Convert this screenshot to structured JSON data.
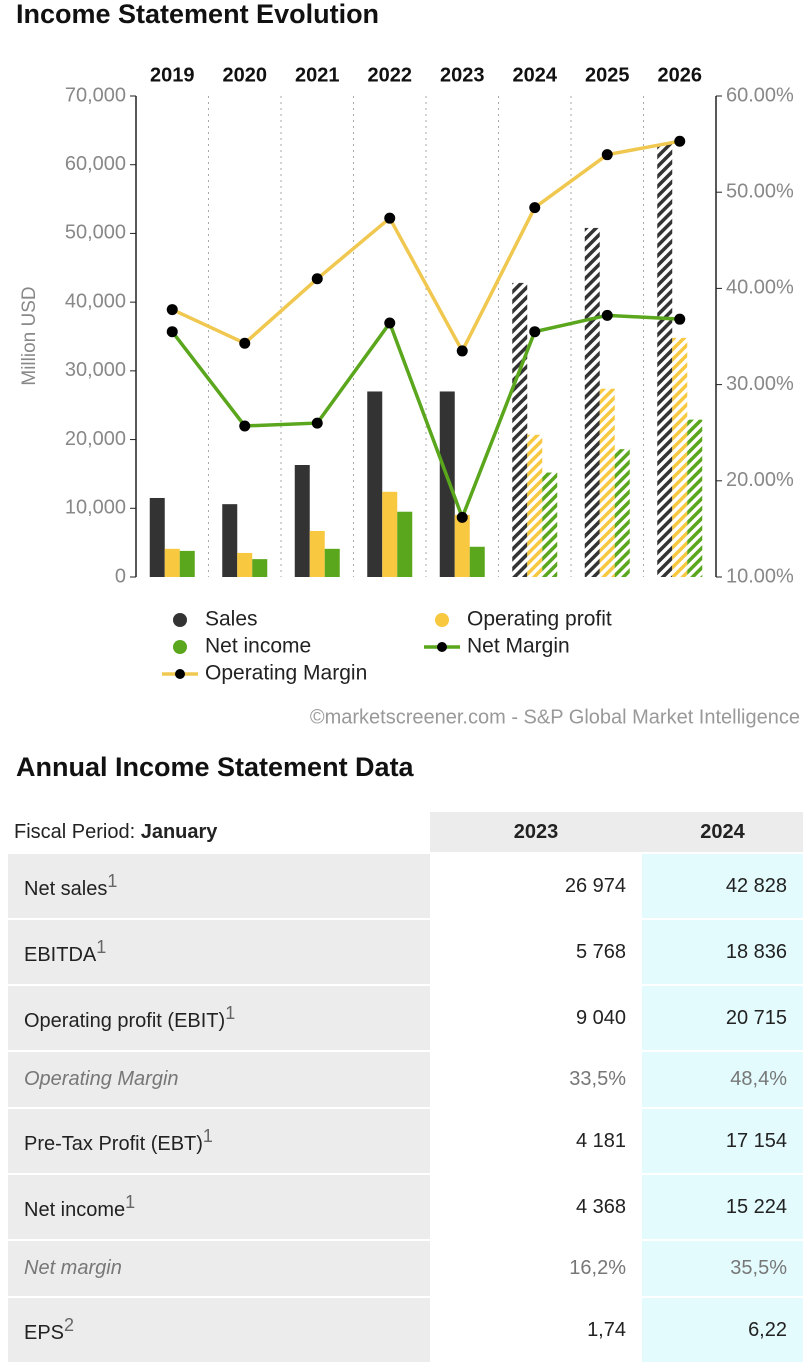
{
  "chart_data": {
    "type": "bar",
    "title": "Income Statement Evolution",
    "y_label": "Million USD",
    "categories": [
      "2019",
      "2020",
      "2021",
      "2022",
      "2023",
      "2024",
      "2025",
      "2026"
    ],
    "hatched": [
      false,
      false,
      false,
      false,
      false,
      true,
      true,
      true
    ],
    "series": [
      {
        "name": "Sales",
        "color": "#333333",
        "type": "bar",
        "values": [
          11500,
          10600,
          16300,
          27000,
          27000,
          42800,
          50800,
          63000
        ]
      },
      {
        "name": "Operating profit",
        "color": "#f7c840",
        "type": "bar",
        "values": [
          4100,
          3500,
          6700,
          12400,
          9040,
          20700,
          27400,
          34800
        ]
      },
      {
        "name": "Net income",
        "color": "#5aa61c",
        "type": "bar",
        "values": [
          3800,
          2600,
          4100,
          9500,
          4400,
          15200,
          18600,
          22900
        ]
      },
      {
        "name": "Net Margin",
        "color": "#5aa61c",
        "type": "line",
        "axis": "y2",
        "values": [
          35.5,
          25.7,
          26.0,
          36.4,
          16.2,
          35.5,
          37.2,
          36.8
        ]
      },
      {
        "name": "Operating Margin",
        "color": "#f0c850",
        "type": "line",
        "axis": "y2",
        "values": [
          37.8,
          34.3,
          41.0,
          47.3,
          33.5,
          48.4,
          53.9,
          55.3
        ]
      }
    ],
    "ylim": [
      0,
      70000
    ],
    "yticks": [
      0,
      {
        "value": 10000,
        "label": "10,000"
      },
      {
        "value": 20000,
        "label": "20,000"
      },
      {
        "value": 30000,
        "label": "30,000"
      },
      {
        "value": 40000,
        "label": "40,000"
      },
      {
        "value": 50000,
        "label": "50,000"
      },
      {
        "value": 60000,
        "label": "60,000"
      },
      {
        "value": 70000,
        "label": "70,000"
      }
    ],
    "y2lim": [
      10,
      60
    ],
    "y2ticks": [
      {
        "value": 10,
        "label": "10.00%"
      },
      {
        "value": 20,
        "label": "20.00%"
      },
      {
        "value": 30,
        "label": "30.00%"
      },
      {
        "value": 40,
        "label": "40.00%"
      },
      {
        "value": 50,
        "label": "50.00%"
      },
      {
        "value": 60,
        "label": "60.00%"
      }
    ],
    "source": "©marketscreener.com - S&P Global Market Intelligence"
  },
  "table": {
    "title": "Annual Income Statement Data",
    "period_label": "Fiscal Period:",
    "period": "January",
    "columns": [
      "2023",
      "2024"
    ],
    "rows": [
      {
        "label": "Net sales",
        "note": "1",
        "values": [
          "26 974",
          "42 828"
        ]
      },
      {
        "label": "EBITDA",
        "note": "1",
        "values": [
          "5 768",
          "18 836"
        ]
      },
      {
        "label": "Operating profit (EBIT)",
        "note": "1",
        "values": [
          "9 040",
          "20 715"
        ]
      },
      {
        "label": "Operating Margin",
        "italic": true,
        "values": [
          "33,5%",
          "48,4%"
        ]
      },
      {
        "label": "Pre-Tax Profit (EBT)",
        "note": "1",
        "values": [
          "4 181",
          "17 154"
        ]
      },
      {
        "label": "Net income",
        "note": "1",
        "values": [
          "4 368",
          "15 224"
        ]
      },
      {
        "label": "Net margin",
        "italic": true,
        "values": [
          "16,2%",
          "35,5%"
        ]
      },
      {
        "label": "EPS",
        "note": "2",
        "values": [
          "1,74",
          "6,22"
        ]
      }
    ]
  }
}
